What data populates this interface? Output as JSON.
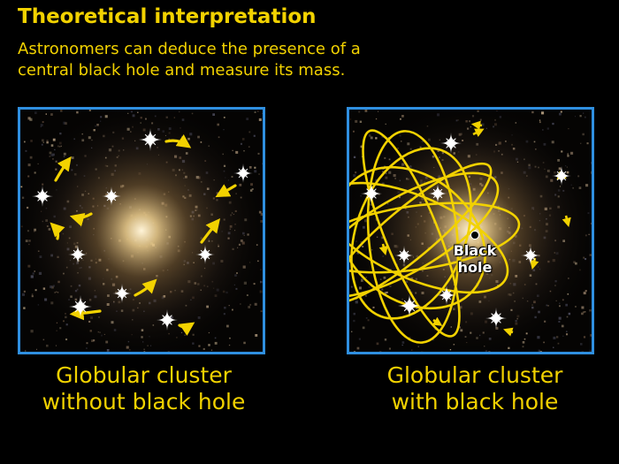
{
  "header": {
    "title": "Theoretical interpretation",
    "subtitle_lines": [
      "Astronomers can deduce the presence of a",
      "central black hole and measure its mass."
    ]
  },
  "panels": [
    {
      "caption_lines": [
        "Globular cluster",
        "without black hole"
      ]
    },
    {
      "caption_lines": [
        "Globular cluster",
        "with black hole"
      ],
      "center_label_lines": [
        "Black",
        "hole"
      ]
    }
  ],
  "colors": {
    "text": "#f2d200",
    "frame": "#2f8fe0",
    "arrow": "#f2d200",
    "orbit": "#f2d200",
    "background": "#000000"
  }
}
